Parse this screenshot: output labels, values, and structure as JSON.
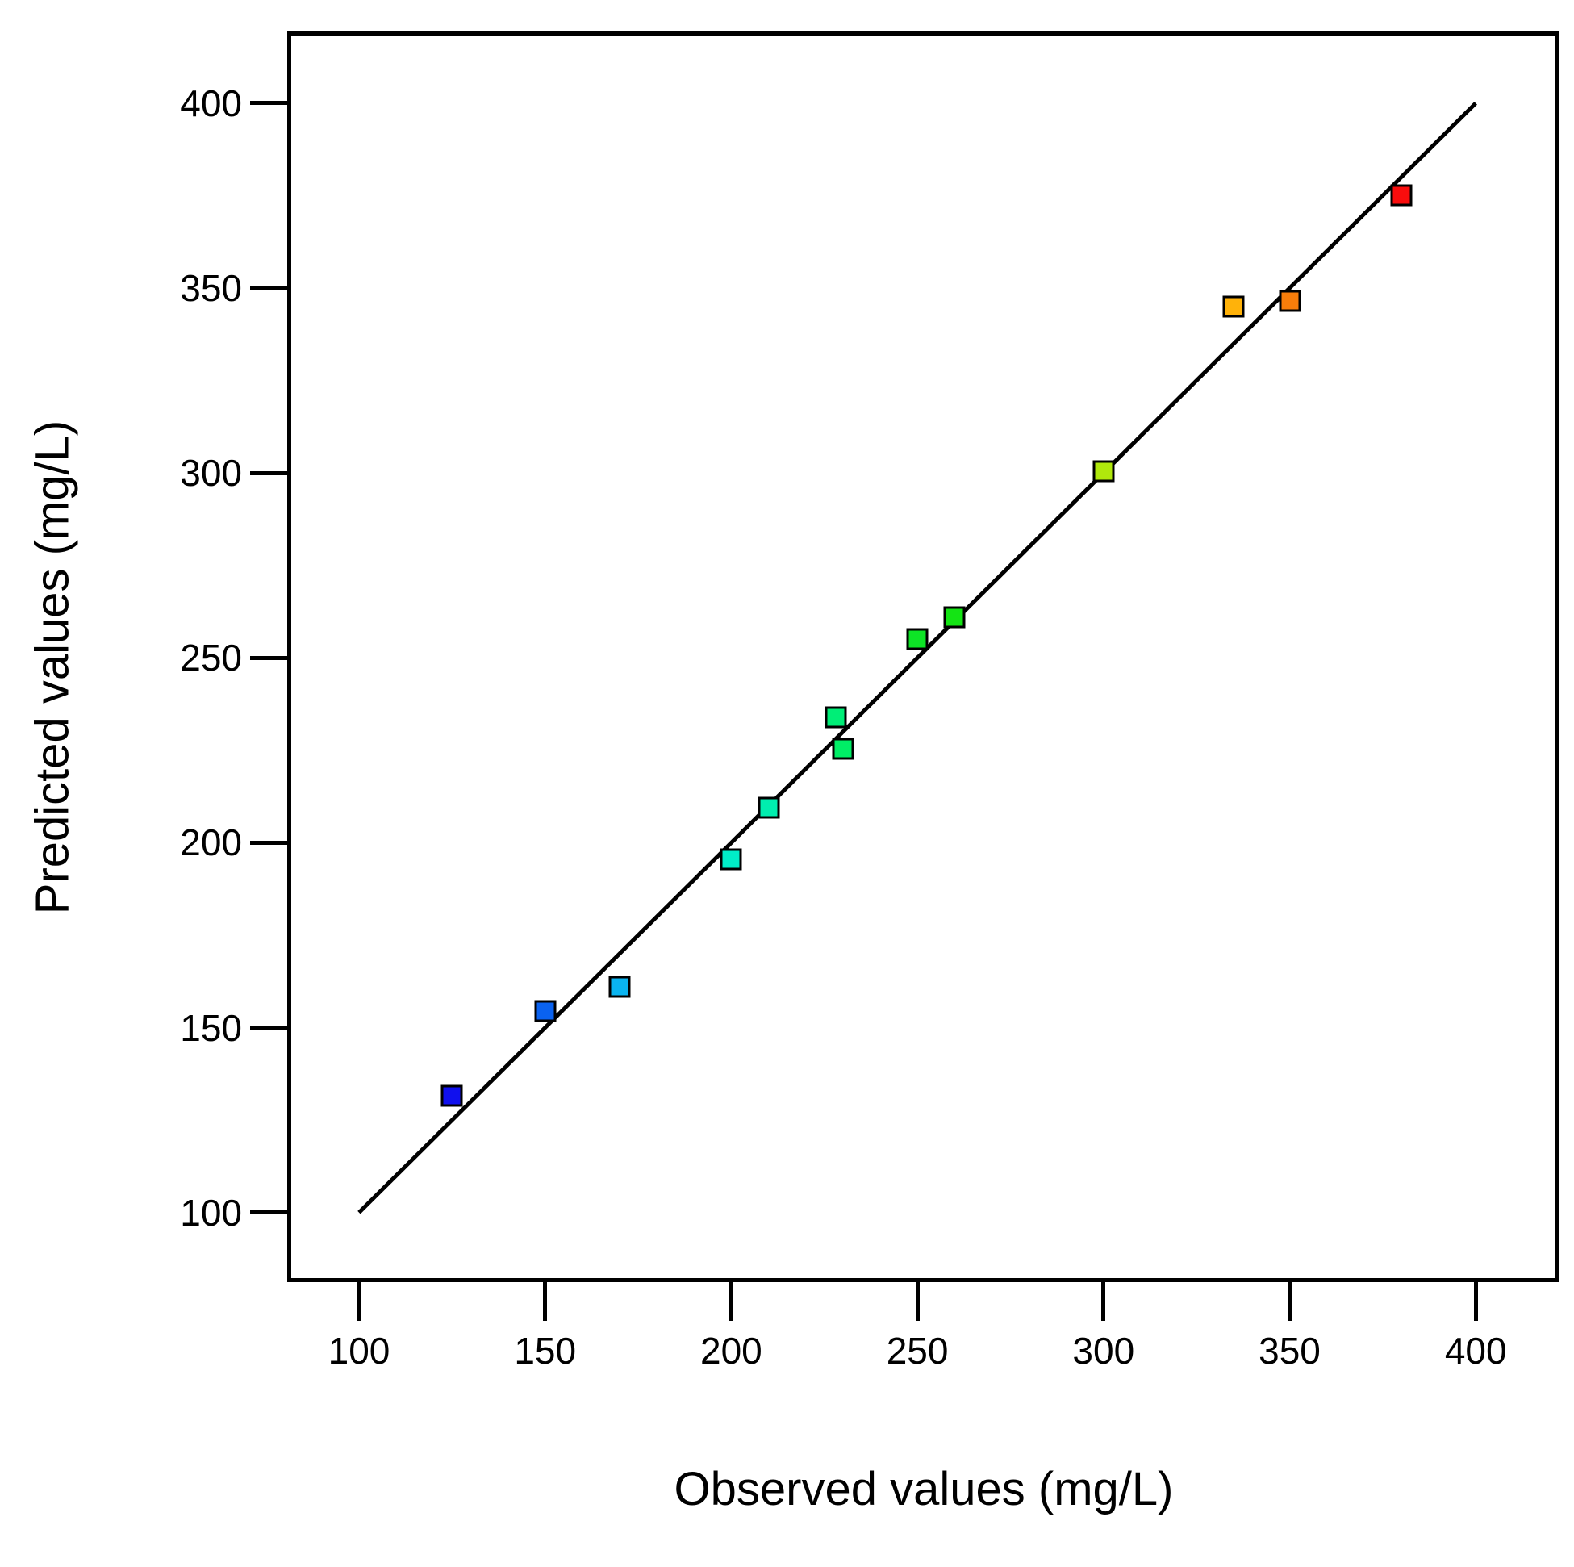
{
  "chart_data": {
    "type": "scatter",
    "title": "",
    "xlabel": "Observed values (mg/L)",
    "ylabel": "Predicted values (mg/L)",
    "xticks": [
      100,
      150,
      200,
      250,
      300,
      350,
      400
    ],
    "yticks": [
      100,
      150,
      200,
      250,
      300,
      350,
      400
    ],
    "xlim": [
      81,
      422
    ],
    "ylim": [
      81,
      419
    ],
    "grid": false,
    "legend": "none",
    "marker": "square",
    "fit_line": {
      "x1": 100,
      "y1": 100,
      "x2": 400,
      "y2": 400,
      "color": "#000000"
    },
    "points": [
      {
        "observed": 125,
        "predicted": 131.5,
        "color": "#1010EE"
      },
      {
        "observed": 150,
        "predicted": 154.5,
        "color": "#0A62F0"
      },
      {
        "observed": 170,
        "predicted": 161,
        "color": "#0AB4F0"
      },
      {
        "observed": 200,
        "predicted": 195.5,
        "color": "#00EEC8"
      },
      {
        "observed": 210,
        "predicted": 209.5,
        "color": "#00EEAF"
      },
      {
        "observed": 228,
        "predicted": 234,
        "color": "#00EE77"
      },
      {
        "observed": 230,
        "predicted": 225.5,
        "color": "#00EE66"
      },
      {
        "observed": 250,
        "predicted": 255,
        "color": "#0DE426"
      },
      {
        "observed": 260,
        "predicted": 261,
        "color": "#14E414"
      },
      {
        "observed": 300,
        "predicted": 300.5,
        "color": "#B0E80C"
      },
      {
        "observed": 335,
        "predicted": 345,
        "color": "#FFB20A"
      },
      {
        "observed": 350,
        "predicted": 346.5,
        "color": "#F87D0A"
      },
      {
        "observed": 380,
        "predicted": 375,
        "color": "#FA0D0D"
      }
    ]
  }
}
